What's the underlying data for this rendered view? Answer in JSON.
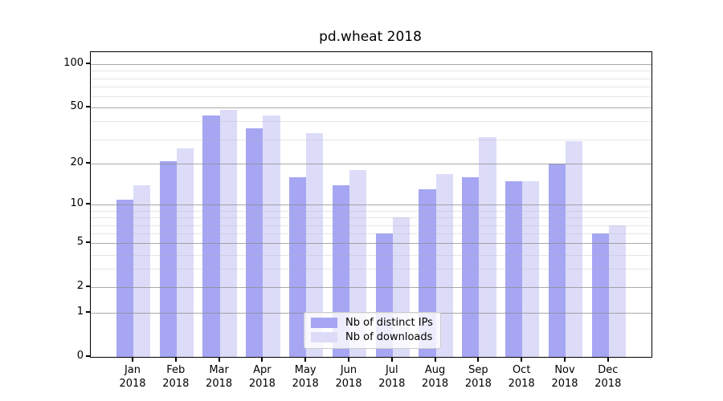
{
  "chart_data": {
    "type": "bar",
    "title": "pd.wheat 2018",
    "categories": [
      "Jan 2018",
      "Feb 2018",
      "Mar 2018",
      "Apr 2018",
      "May 2018",
      "Jun 2018",
      "Jul 2018",
      "Aug 2018",
      "Sep 2018",
      "Oct 2018",
      "Nov 2018",
      "Dec 2018"
    ],
    "series": [
      {
        "name": "Nb of distinct IPs",
        "color": "#a6a6f3",
        "values": [
          11,
          21,
          44,
          36,
          16,
          14,
          6,
          13,
          16,
          15,
          20,
          6
        ]
      },
      {
        "name": "Nb of downloads",
        "color": "#dcdcf9",
        "values": [
          14,
          26,
          48,
          44,
          33,
          18,
          8,
          17,
          31,
          15,
          29,
          7
        ]
      }
    ],
    "xlabel": "",
    "ylabel": "",
    "yscale": "log10(1+x)",
    "yticks": [
      0,
      1,
      2,
      5,
      10,
      20,
      50,
      100
    ],
    "minor_gridlines": [
      3,
      4,
      6,
      7,
      8,
      9,
      30,
      40,
      60,
      70,
      80,
      90
    ],
    "ylim": [
      0,
      121
    ],
    "grid": "horizontal, major+minor, drawn above bars",
    "legend_position": "lower center"
  },
  "colors": {
    "background": "#ffffff",
    "spine": "#000000",
    "major_grid": "#8c8c8c",
    "minor_grid": "#b0b0b0",
    "distinct_ips_bar": "#a6a6f3",
    "downloads_bar": "#dcdcf9"
  }
}
